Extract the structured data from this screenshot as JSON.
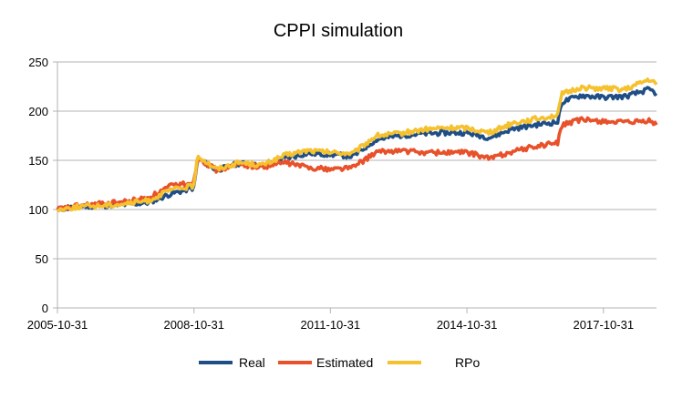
{
  "chart_data": {
    "type": "line",
    "title": "CPPI simulation",
    "xlabel": "",
    "ylabel": "",
    "x_tick_labels": [
      "2005-10-31",
      "2008-10-31",
      "2011-10-31",
      "2014-10-31",
      "2017-10-31"
    ],
    "x_range": [
      "2005-10-31",
      "2018-12-31"
    ],
    "ylim": [
      0,
      250
    ],
    "y_ticks": [
      0,
      50,
      100,
      150,
      200,
      250
    ],
    "grid": "horizontal",
    "legend": "bottom",
    "x": [
      "2005-10-31",
      "2006-04-30",
      "2006-10-31",
      "2007-04-30",
      "2007-10-31",
      "2008-04-30",
      "2008-10-31",
      "2008-11-30",
      "2009-04-30",
      "2009-10-31",
      "2010-04-30",
      "2010-10-31",
      "2011-04-30",
      "2011-10-31",
      "2012-04-30",
      "2012-10-31",
      "2013-04-30",
      "2013-10-31",
      "2014-04-30",
      "2014-10-31",
      "2015-04-30",
      "2015-10-31",
      "2016-04-30",
      "2016-10-31",
      "2016-11-30",
      "2017-04-30",
      "2017-10-31",
      "2018-04-30",
      "2018-10-31",
      "2018-12-31"
    ],
    "series": [
      {
        "name": "Real",
        "color": "#1f4e87",
        "values": [
          100,
          103,
          104,
          105,
          107,
          116,
          122,
          152,
          140,
          147,
          144,
          152,
          157,
          156,
          154,
          171,
          175,
          177,
          178,
          178,
          173,
          182,
          186,
          189,
          209,
          216,
          214,
          215,
          222,
          218
        ]
      },
      {
        "name": "Estimated",
        "color": "#e8512a",
        "values": [
          100,
          104,
          106,
          108,
          112,
          124,
          128,
          153,
          140,
          146,
          143,
          148,
          143,
          141,
          143,
          158,
          160,
          158,
          158,
          158,
          152,
          159,
          164,
          168,
          186,
          191,
          190,
          188,
          190,
          186
        ]
      },
      {
        "name": "RPo",
        "color": "#f5c12e",
        "values": [
          100,
          103,
          104,
          106,
          109,
          120,
          124,
          155,
          141,
          148,
          145,
          155,
          160,
          158,
          157,
          175,
          177,
          181,
          183,
          183,
          178,
          188,
          192,
          196,
          217,
          224,
          223,
          222,
          232,
          227
        ]
      }
    ]
  }
}
